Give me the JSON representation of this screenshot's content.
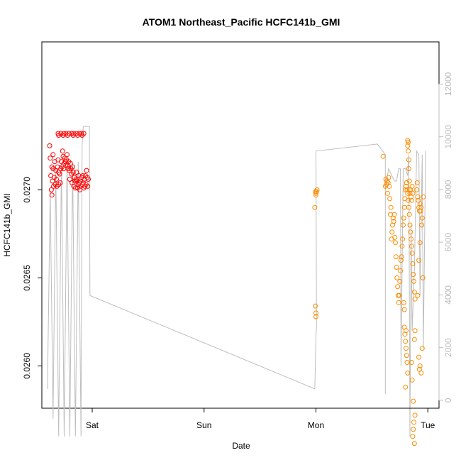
{
  "chart_data": {
    "type": "scatter",
    "title": "ATOM1 Northeast_Pacific HCFC141b_GMI",
    "xlabel": "Date",
    "ylabel": "HCFC141b_GMI",
    "x_ticks": [
      "Sat",
      "Sun",
      "Mon",
      "Tue"
    ],
    "y_ticks": [
      "0.0260",
      "0.0265",
      "0.0270"
    ],
    "y2_ticks": [
      "0",
      "2000",
      "4000",
      "6000",
      "8000",
      "10000",
      "12000"
    ],
    "xlim": [
      -0.45,
      3.1
    ],
    "ylim": [
      0.02576,
      0.02784
    ],
    "y2lim": [
      -300,
      13600
    ],
    "colors": {
      "series1": "#ff0000",
      "series2": "#ff8c00",
      "altitude": "#bebebe"
    },
    "series": [
      {
        "marker": "circle",
        "color": "#ff0000",
        "points": [
          [
            -0.38,
            0.02725
          ],
          [
            -0.375,
            0.02718
          ],
          [
            -0.37,
            0.02708
          ],
          [
            -0.365,
            0.027
          ],
          [
            -0.36,
            0.02697
          ],
          [
            -0.36,
            0.02713
          ],
          [
            -0.355,
            0.02705
          ],
          [
            -0.35,
            0.02712
          ],
          [
            -0.35,
            0.0272
          ],
          [
            -0.345,
            0.02702
          ],
          [
            -0.34,
            0.02707
          ],
          [
            -0.335,
            0.02716
          ],
          [
            -0.33,
            0.02703
          ],
          [
            -0.325,
            0.02711
          ],
          [
            -0.32,
            0.02706
          ],
          [
            -0.315,
            0.02702
          ],
          [
            -0.31,
            0.02713
          ],
          [
            -0.305,
            0.02717
          ],
          [
            -0.3,
            0.02703
          ],
          [
            -0.3,
            0.0271
          ],
          [
            -0.29,
            0.02709
          ],
          [
            -0.285,
            0.02704
          ],
          [
            -0.28,
            0.02712
          ],
          [
            -0.275,
            0.02716
          ],
          [
            -0.27,
            0.02713
          ],
          [
            -0.265,
            0.02722
          ],
          [
            -0.26,
            0.02719
          ],
          [
            -0.255,
            0.02712
          ],
          [
            -0.25,
            0.02715
          ],
          [
            -0.245,
            0.02718
          ],
          [
            -0.24,
            0.02716
          ],
          [
            -0.235,
            0.02714
          ],
          [
            -0.23,
            0.02717
          ],
          [
            -0.225,
            0.0272
          ],
          [
            -0.22,
            0.02714
          ],
          [
            -0.215,
            0.02712
          ],
          [
            -0.21,
            0.02716
          ],
          [
            -0.205,
            0.02711
          ],
          [
            -0.2,
            0.02706
          ],
          [
            -0.195,
            0.02715
          ],
          [
            -0.19,
            0.02712
          ],
          [
            -0.185,
            0.02709
          ],
          [
            -0.18,
            0.02704
          ],
          [
            -0.175,
            0.02713
          ],
          [
            -0.17,
            0.0271
          ],
          [
            -0.165,
            0.02702
          ],
          [
            -0.16,
            0.02707
          ],
          [
            -0.155,
            0.02705
          ],
          [
            -0.15,
            0.02701
          ],
          [
            -0.145,
            0.02706
          ],
          [
            -0.14,
            0.0271
          ],
          [
            -0.135,
            0.02705
          ],
          [
            -0.13,
            0.02701
          ],
          [
            -0.125,
            0.02703
          ],
          [
            -0.12,
            0.02708
          ],
          [
            -0.115,
            0.02704
          ],
          [
            -0.11,
            0.027
          ],
          [
            -0.105,
            0.02705
          ],
          [
            -0.1,
            0.02702
          ],
          [
            -0.095,
            0.02707
          ],
          [
            -0.09,
            0.02703
          ],
          [
            -0.085,
            0.02708
          ],
          [
            -0.08,
            0.02704
          ],
          [
            -0.075,
            0.02701
          ],
          [
            -0.07,
            0.02706
          ],
          [
            -0.065,
            0.02702
          ],
          [
            -0.06,
            0.02708
          ],
          [
            -0.055,
            0.02703
          ],
          [
            -0.05,
            0.02711
          ],
          [
            -0.045,
            0.02707
          ],
          [
            -0.04,
            0.02702
          ],
          [
            -0.035,
            0.02706
          ],
          [
            -0.305,
            0.02732
          ],
          [
            -0.28,
            0.02732
          ],
          [
            -0.255,
            0.02732
          ],
          [
            -0.235,
            0.02732
          ],
          [
            -0.21,
            0.02732
          ],
          [
            -0.185,
            0.02732
          ],
          [
            -0.165,
            0.02732
          ],
          [
            -0.14,
            0.02732
          ],
          [
            -0.115,
            0.02732
          ],
          [
            -0.095,
            0.02732
          ],
          [
            -0.075,
            0.02732
          ],
          [
            -0.3,
            0.02731
          ],
          [
            -0.26,
            0.02731
          ],
          [
            -0.22,
            0.02731
          ],
          [
            -0.17,
            0.02731
          ],
          [
            -0.13,
            0.02731
          ],
          [
            -0.09,
            0.02731
          ]
        ]
      },
      {
        "marker": "circle",
        "color": "#ff8c00",
        "points": [
          [
            1.995,
            0.02699
          ],
          [
            2.0,
            0.02698
          ],
          [
            2.005,
            0.02699
          ],
          [
            2.0,
            0.02697
          ],
          [
            2.01,
            0.027
          ],
          [
            1.99,
            0.0269
          ],
          [
            2.0,
            0.0263
          ],
          [
            1.995,
            0.02634
          ],
          [
            2.0,
            0.02628
          ],
          [
            2.6,
            0.02719
          ],
          [
            2.62,
            0.02702
          ],
          [
            2.625,
            0.02706
          ],
          [
            2.63,
            0.02703
          ],
          [
            2.635,
            0.02705
          ],
          [
            2.64,
            0.02698
          ],
          [
            2.645,
            0.02704
          ],
          [
            2.65,
            0.02707
          ],
          [
            2.655,
            0.02702
          ],
          [
            2.66,
            0.02695
          ],
          [
            2.665,
            0.02686
          ],
          [
            2.67,
            0.0269
          ],
          [
            2.675,
            0.02672
          ],
          [
            2.68,
            0.02676
          ],
          [
            2.685,
            0.0268
          ],
          [
            2.69,
            0.02684
          ],
          [
            2.695,
            0.02682
          ],
          [
            2.7,
            0.02686
          ],
          [
            2.705,
            0.02673
          ],
          [
            2.71,
            0.0267
          ],
          [
            2.715,
            0.02662
          ],
          [
            2.72,
            0.02656
          ],
          [
            2.725,
            0.0265
          ],
          [
            2.73,
            0.02645
          ],
          [
            2.735,
            0.0264
          ],
          [
            2.74,
            0.02636
          ],
          [
            2.745,
            0.0264
          ],
          [
            2.75,
            0.02648
          ],
          [
            2.755,
            0.02654
          ],
          [
            2.76,
            0.0266
          ],
          [
            2.765,
            0.02662
          ],
          [
            2.77,
            0.02668
          ],
          [
            2.775,
            0.02672
          ],
          [
            2.78,
            0.0268
          ],
          [
            2.785,
            0.02684
          ],
          [
            2.79,
            0.0269
          ],
          [
            2.795,
            0.02695
          ],
          [
            2.8,
            0.027
          ],
          [
            2.805,
            0.02702
          ],
          [
            2.81,
            0.02704
          ],
          [
            2.815,
            0.027
          ],
          [
            2.82,
            0.02698
          ],
          [
            2.825,
            0.02694
          ],
          [
            2.83,
            0.0269
          ],
          [
            2.835,
            0.02686
          ],
          [
            2.84,
            0.0268
          ],
          [
            2.845,
            0.02676
          ],
          [
            2.85,
            0.02672
          ],
          [
            2.855,
            0.02668
          ],
          [
            2.86,
            0.02664
          ],
          [
            2.865,
            0.02658
          ],
          [
            2.87,
            0.02652
          ],
          [
            2.875,
            0.02648
          ],
          [
            2.88,
            0.02642
          ],
          [
            2.885,
            0.02638
          ],
          [
            2.79,
            0.02622
          ],
          [
            2.795,
            0.02618
          ],
          [
            2.8,
            0.02614
          ],
          [
            2.805,
            0.0261
          ],
          [
            2.81,
            0.02606
          ],
          [
            2.815,
            0.02602
          ],
          [
            2.82,
            0.02596
          ],
          [
            2.8,
            0.02588
          ],
          [
            2.805,
            0.0262
          ],
          [
            2.79,
            0.02632
          ],
          [
            2.785,
            0.02636
          ],
          [
            2.865,
            0.0256
          ],
          [
            2.87,
            0.02564
          ],
          [
            2.875,
            0.02568
          ],
          [
            2.88,
            0.02556
          ],
          [
            2.885,
            0.02572
          ],
          [
            2.87,
            0.0258
          ],
          [
            2.86,
            0.02592
          ],
          [
            2.855,
            0.02602
          ],
          [
            2.88,
            0.02615
          ],
          [
            2.885,
            0.0262
          ],
          [
            2.82,
            0.02728
          ],
          [
            2.825,
            0.02722
          ],
          [
            2.83,
            0.02712
          ],
          [
            2.835,
            0.02705
          ],
          [
            2.84,
            0.02698
          ],
          [
            2.845,
            0.027
          ],
          [
            2.85,
            0.02696
          ],
          [
            2.855,
            0.02694
          ],
          [
            2.86,
            0.02702
          ],
          [
            2.865,
            0.02698
          ],
          [
            2.9,
            0.027
          ],
          [
            2.905,
            0.02704
          ],
          [
            2.91,
            0.02696
          ],
          [
            2.915,
            0.02694
          ],
          [
            2.92,
            0.0269
          ],
          [
            2.925,
            0.02688
          ],
          [
            2.93,
            0.02692
          ],
          [
            2.935,
            0.02688
          ],
          [
            2.94,
            0.0269
          ],
          [
            2.945,
            0.0268
          ],
          [
            2.95,
            0.02684
          ],
          [
            2.955,
            0.0265
          ],
          [
            2.93,
            0.0267
          ],
          [
            2.92,
            0.0266
          ],
          [
            2.91,
            0.0264
          ],
          [
            2.92,
            0.02605
          ],
          [
            2.93,
            0.026
          ],
          [
            2.925,
            0.02598
          ],
          [
            2.94,
            0.02596
          ],
          [
            2.95,
            0.0261
          ],
          [
            2.96,
            0.02696
          ],
          [
            2.82,
            0.02725
          ],
          [
            2.825,
            0.02727
          ],
          [
            2.83,
            0.02717
          ],
          [
            2.835,
            0.027
          ]
        ]
      }
    ],
    "altitude_line": [
      [
        -0.4,
        0.02587
      ],
      [
        -0.375,
        0.027
      ],
      [
        -0.35,
        0.0257
      ],
      [
        -0.325,
        0.02712
      ],
      [
        -0.3,
        0.0256
      ],
      [
        -0.275,
        0.02715
      ],
      [
        -0.25,
        0.0256
      ],
      [
        -0.225,
        0.02718
      ],
      [
        -0.2,
        0.0256
      ],
      [
        -0.175,
        0.02715
      ],
      [
        -0.15,
        0.0256
      ],
      [
        -0.125,
        0.02716
      ],
      [
        -0.1,
        0.0256
      ],
      [
        -0.09,
        0.02726
      ],
      [
        -0.08,
        0.02736
      ],
      [
        -0.05,
        0.02736
      ],
      [
        -0.04,
        0.02736
      ],
      [
        -0.025,
        0.02736
      ],
      [
        -0.02,
        0.0264
      ],
      [
        1.99,
        0.02587
      ],
      [
        2.0,
        0.02617
      ],
      [
        2.005,
        0.02622
      ],
      [
        2.0,
        0.02722
      ],
      [
        2.55,
        0.02726
      ],
      [
        2.62,
        0.0272
      ],
      [
        2.62,
        0.02584
      ],
      [
        2.62,
        0.027
      ],
      [
        2.63,
        0.02705
      ],
      [
        2.65,
        0.02712
      ],
      [
        2.7,
        0.02705
      ],
      [
        2.72,
        0.02705
      ],
      [
        2.74,
        0.02712
      ],
      [
        2.755,
        0.02712
      ],
      [
        2.76,
        0.026
      ],
      [
        2.78,
        0.02712
      ],
      [
        2.8,
        0.02712
      ],
      [
        2.82,
        0.02708
      ],
      [
        2.83,
        0.0272
      ],
      [
        2.84,
        0.0256
      ],
      [
        2.85,
        0.0268
      ],
      [
        2.86,
        0.0262
      ],
      [
        2.88,
        0.02655
      ],
      [
        2.9,
        0.02722
      ],
      [
        2.92,
        0.0272
      ],
      [
        2.93,
        0.0264
      ],
      [
        2.95,
        0.0272
      ],
      [
        2.96,
        0.0261
      ],
      [
        2.98,
        0.02722
      ]
    ]
  }
}
